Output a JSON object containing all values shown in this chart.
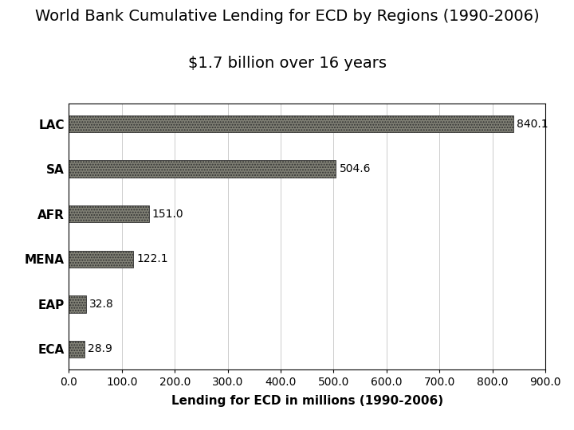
{
  "title_line1": "World Bank Cumulative Lending for ECD by Regions (1990-2006)",
  "title_line2": "$1.7 billion over 16 years",
  "categories": [
    "LAC",
    "SA",
    "AFR",
    "MENA",
    "EAP",
    "ECA"
  ],
  "values": [
    840.1,
    504.6,
    151.0,
    122.1,
    32.8,
    28.9
  ],
  "bar_color": "#808075",
  "bar_hatch": ".....",
  "bar_edgecolor": "#333333",
  "xlabel": "Lending for ECD in millions (1990-2006)",
  "xlim": [
    0,
    900
  ],
  "xticks": [
    0.0,
    100.0,
    200.0,
    300.0,
    400.0,
    500.0,
    600.0,
    700.0,
    800.0,
    900.0
  ],
  "background_color": "#ffffff",
  "title_fontsize": 14,
  "label_fontsize": 11,
  "tick_fontsize": 10,
  "value_fontsize": 10,
  "xlabel_fontsize": 11,
  "bar_height": 0.38
}
